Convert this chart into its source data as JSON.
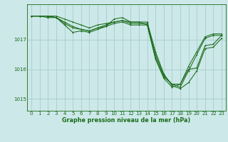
{
  "title": "Graphe pression niveau de la mer (hPa)",
  "bg_color": "#cce8e8",
  "grid_color": "#aacccc",
  "line_color": "#1a6b1a",
  "marker_color": "#1a6b1a",
  "xlim": [
    -0.5,
    23.5
  ],
  "ylim": [
    1014.6,
    1018.2
  ],
  "yticks": [
    1015,
    1016,
    1017
  ],
  "xticks": [
    0,
    1,
    2,
    3,
    4,
    5,
    6,
    7,
    8,
    9,
    10,
    11,
    12,
    13,
    14,
    15,
    16,
    17,
    18,
    19,
    20,
    21,
    22,
    23
  ],
  "series": [
    {
      "x": [
        0,
        1,
        2,
        3,
        4,
        5,
        6,
        7,
        8,
        9,
        10,
        11,
        12,
        13,
        14,
        15,
        16,
        17,
        18,
        19,
        20,
        21,
        22,
        23
      ],
      "y": [
        1017.8,
        1017.8,
        1017.8,
        1017.75,
        1017.5,
        1017.25,
        1017.3,
        1017.25,
        1017.35,
        1017.45,
        1017.7,
        1017.75,
        1017.6,
        1017.6,
        1017.5,
        1016.4,
        1015.75,
        1015.5,
        1015.4,
        1015.95,
        1016.5,
        1017.05,
        1017.15,
        1017.15
      ]
    },
    {
      "x": [
        0,
        1,
        2,
        3,
        4,
        5,
        6,
        7,
        8,
        9,
        10,
        11,
        12,
        13,
        14,
        15,
        16,
        17,
        18,
        19,
        20,
        21,
        22,
        23
      ],
      "y": [
        1017.8,
        1017.8,
        1017.8,
        1017.8,
        1017.7,
        1017.6,
        1017.5,
        1017.4,
        1017.5,
        1017.55,
        1017.6,
        1017.65,
        1017.6,
        1017.6,
        1017.6,
        1016.6,
        1015.85,
        1015.45,
        1015.35,
        1015.55,
        1015.95,
        1016.7,
        1016.75,
        1017.05
      ]
    },
    {
      "x": [
        0,
        1,
        2,
        3,
        4,
        5,
        6,
        7,
        8,
        9,
        10,
        11,
        12,
        13,
        14,
        15,
        16,
        17,
        18,
        19,
        20,
        21,
        22,
        23
      ],
      "y": [
        1017.8,
        1017.8,
        1017.75,
        1017.75,
        1017.55,
        1017.4,
        1017.35,
        1017.3,
        1017.4,
        1017.5,
        1017.6,
        1017.65,
        1017.55,
        1017.55,
        1017.55,
        1016.5,
        1015.8,
        1015.5,
        1015.5,
        1016.1,
        1016.6,
        1017.1,
        1017.2,
        1017.2
      ]
    },
    {
      "x": [
        0,
        1,
        2,
        3,
        4,
        5,
        6,
        7,
        8,
        9,
        10,
        11,
        12,
        13,
        14,
        15,
        16,
        17,
        18,
        19,
        20,
        21,
        22,
        23
      ],
      "y": [
        1017.8,
        1017.8,
        1017.8,
        1017.75,
        1017.6,
        1017.45,
        1017.35,
        1017.3,
        1017.4,
        1017.45,
        1017.55,
        1017.6,
        1017.5,
        1017.5,
        1017.5,
        1016.35,
        1015.7,
        1015.4,
        1015.5,
        1016.0,
        1016.05,
        1016.8,
        1016.85,
        1017.15
      ]
    }
  ],
  "label_fontsize": 5.8,
  "tick_fontsize": 5.0,
  "marker_size": 2.0,
  "line_width": 0.75
}
